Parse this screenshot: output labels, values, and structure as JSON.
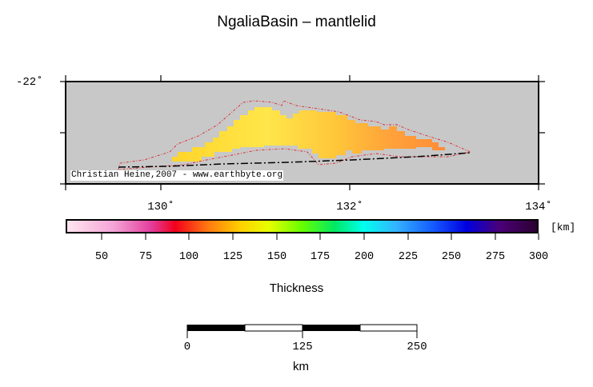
{
  "title": "NgaliaBasin – mantlelid",
  "map": {
    "lat_labels": [
      "-22˚"
    ],
    "lon_labels": [
      "130˚",
      "132˚",
      "134˚"
    ],
    "credit": "Christian Heine,2007 - www.earthbyte.org",
    "land_color": "#c8c8c8",
    "outline_color": "#e0202a"
  },
  "colorbar": {
    "unit": "[km]",
    "ticks": [
      "50",
      "75",
      "100",
      "125",
      "150",
      "175",
      "200",
      "225",
      "250",
      "275",
      "300"
    ],
    "title": "Thickness",
    "range": [
      30,
      300
    ]
  },
  "scalebar": {
    "labels": [
      "0",
      "125",
      "250"
    ],
    "unit": "km"
  }
}
